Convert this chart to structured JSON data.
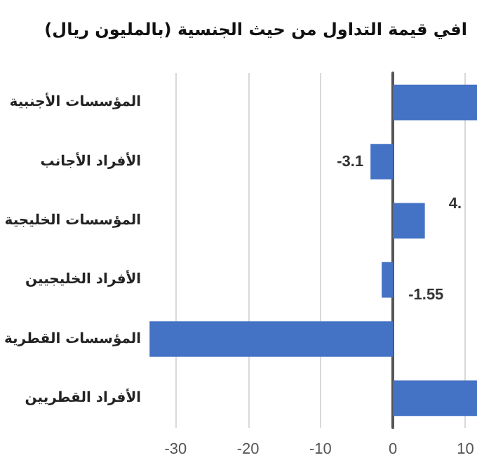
{
  "chart_data": {
    "type": "bar",
    "orientation": "horizontal",
    "title": "افي قيمة التداول من حيث الجنسية (بالمليون ريال)",
    "categories": [
      "المؤسسات الأجنبية",
      "الأفراد الأجانب",
      "المؤسسات الخليجية",
      "الأفراد الخليجيين",
      "المؤسسات القطرية",
      "الأفراد القطريين"
    ],
    "values": [
      11.6,
      -3.1,
      4.4,
      -1.55,
      -33.6,
      11.6
    ],
    "value_labels": [
      null,
      "-3.1",
      "4.",
      "-1.55",
      null,
      null
    ],
    "color": "#4472c4",
    "xlim": [
      -33.6,
      11.6
    ],
    "xticks": [
      -30,
      -20,
      -10,
      0,
      10
    ],
    "grid": "x"
  }
}
